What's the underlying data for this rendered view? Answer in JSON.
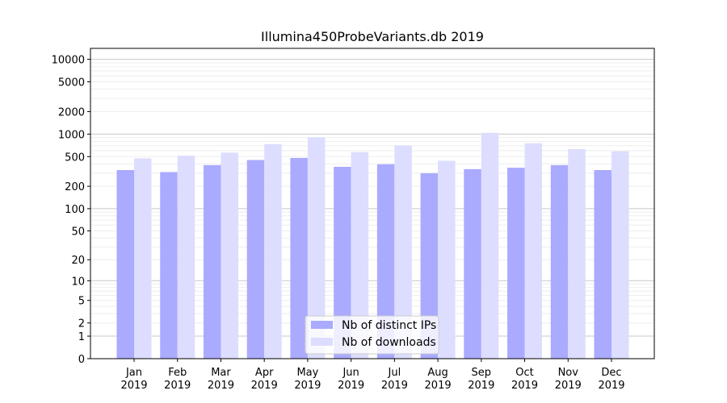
{
  "chart_data": {
    "type": "bar",
    "title": "Illumina450ProbeVariants.db 2019",
    "xlabel": "",
    "ylabel": "",
    "y_scale": "symlog",
    "ylim": [
      0,
      14000
    ],
    "y_ticks": [
      0,
      1,
      2,
      5,
      10,
      20,
      50,
      100,
      200,
      500,
      1000,
      2000,
      5000,
      10000
    ],
    "y_tick_labels": [
      "0",
      "1",
      "2",
      "5",
      "10",
      "20",
      "50",
      "100",
      "200",
      "500",
      "1000",
      "2000",
      "5000",
      "10000"
    ],
    "categories": [
      "Jan\n2019",
      "Feb\n2019",
      "Mar\n2019",
      "Apr\n2019",
      "May\n2019",
      "Jun\n2019",
      "Jul\n2019",
      "Aug\n2019",
      "Sep\n2019",
      "Oct\n2019",
      "Nov\n2019",
      "Dec\n2019"
    ],
    "series": [
      {
        "name": "Nb of distinct IPs",
        "color": "#aaaaff",
        "values": [
          330,
          310,
          385,
          450,
          480,
          365,
          395,
          300,
          340,
          355,
          385,
          330
        ]
      },
      {
        "name": "Nb of downloads",
        "color": "#ddddff",
        "values": [
          475,
          515,
          565,
          735,
          905,
          575,
          705,
          440,
          1040,
          755,
          630,
          590
        ]
      }
    ],
    "legend_position": "bottom-center",
    "grid": true
  }
}
